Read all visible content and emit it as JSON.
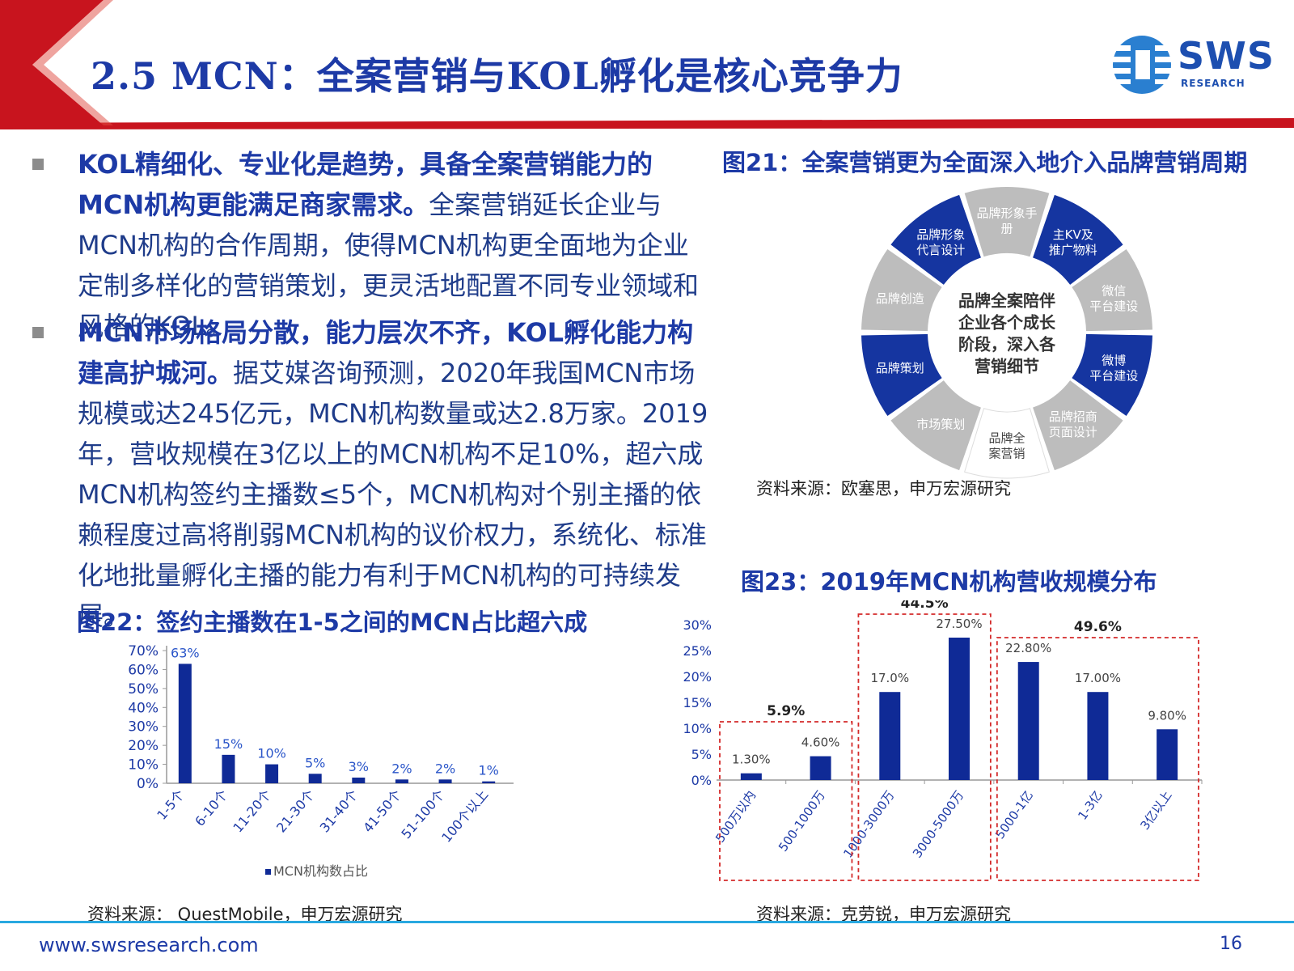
{
  "header": {
    "title": "2.5 MCN：全案营销与KOL孵化是核心竞争力",
    "logo_text": "SWS",
    "logo_sub": "RESEARCH",
    "colors": {
      "accent_red": "#c8141e",
      "title_blue": "#1d3aa6"
    }
  },
  "body": {
    "bullets": [
      {
        "bold": "KOL精细化、专业化是趋势，具备全案营销能力的MCN机构更能满足商家需求。",
        "text": "全案营销延长企业与MCN机构的合作周期，使得MCN机构更全面地为企业定制多样化的营销策划，更灵活地配置不同专业领域和风格的KOL。"
      },
      {
        "bold": "MCN市场格局分散，能力层次不齐，KOL孵化能力构建高护城河。",
        "text": "据艾媒咨询预测，2020年我国MCN市场规模或达245亿元，MCN机构数量或达2.8万家。2019年，营收规模在3亿以上的MCN机构不足10%，超六成MCN机构签约主播数≤5个，MCN机构对个别主播的依赖程度过高将削弱MCN机构的议价权力，系统化、标准化地批量孵化主播的能力有利于MCN机构的可持续发展。"
      }
    ]
  },
  "fig21": {
    "title": "图21：全案营销更为全面深入地介入品牌营销周期",
    "center_text": [
      "品牌全案陪伴",
      "企业各个成长",
      "阶段，深入各",
      "营销细节"
    ],
    "segments": [
      {
        "label": [
          "品牌形象手",
          "册"
        ],
        "color": "gray"
      },
      {
        "label": [
          "主KV及",
          "推广物料"
        ],
        "color": "blue"
      },
      {
        "label": [
          "微信",
          "平台建设"
        ],
        "color": "gray"
      },
      {
        "label": [
          "微博",
          "平台建设"
        ],
        "color": "blue"
      },
      {
        "label": [
          "品牌招商",
          "页面设计"
        ],
        "color": "gray"
      },
      {
        "label": [
          "品牌全",
          "案营销"
        ],
        "color": "white"
      },
      {
        "label": [
          "市场策划"
        ],
        "color": "gray"
      },
      {
        "label": [
          "品牌策划"
        ],
        "color": "blue"
      },
      {
        "label": [
          "品牌创造"
        ],
        "color": "gray"
      },
      {
        "label": [
          "品牌形象",
          "代言设计"
        ],
        "color": "blue"
      }
    ],
    "source": "资料来源：欧塞思，申万宏源研究"
  },
  "fig22": {
    "title": "图22：签约主播数在1-5之间的MCN占比超六成",
    "source": "资料来源： QuestMobile，申万宏源研究"
  },
  "fig23": {
    "title": "图23：2019年MCN机构营收规模分布",
    "groups": [
      {
        "label": "5.9%"
      },
      {
        "label": "44.5%"
      },
      {
        "label": "49.6%"
      }
    ],
    "source": "资料来源：克劳锐，申万宏源研究"
  },
  "footer": {
    "url": "www.swsresearch.com",
    "page": "16"
  },
  "chart_data": [
    {
      "type": "bar",
      "categories": [
        "1-5个",
        "6-10个",
        "11-20个",
        "21-30个",
        "31-40个",
        "41-50个",
        "51-100个",
        "100个以上"
      ],
      "series": [
        {
          "name": "MCN机构数占比",
          "values": [
            63,
            15,
            10,
            5,
            3,
            2,
            2,
            1
          ]
        }
      ],
      "data_labels": [
        "63%",
        "15%",
        "10%",
        "5%",
        "3%",
        "2%",
        "2%",
        "1%"
      ],
      "y_ticks": [
        "0%",
        "10%",
        "20%",
        "30%",
        "40%",
        "50%",
        "60%",
        "70%"
      ],
      "ylim": [
        0,
        70
      ],
      "legend": "bottom",
      "color": "#0f2a96"
    },
    {
      "type": "bar",
      "categories": [
        "500万以内",
        "500-1000万",
        "1000-3000万",
        "3000-5000万",
        "5000-1亿",
        "1-3亿",
        "3亿以上"
      ],
      "values": [
        1.3,
        4.6,
        17.0,
        27.5,
        22.8,
        17.0,
        9.8
      ],
      "data_labels": [
        "1.30%",
        "4.60%",
        "17.0%",
        "27.50%",
        "22.80%",
        "17.00%",
        "9.80%"
      ],
      "y_ticks": [
        "0%",
        "5%",
        "10%",
        "15%",
        "20%",
        "25%",
        "30%"
      ],
      "ylim": [
        0,
        30
      ],
      "groups": [
        [
          0,
          1
        ],
        [
          2,
          3
        ],
        [
          4,
          6
        ]
      ],
      "color": "#0f2a96"
    }
  ]
}
